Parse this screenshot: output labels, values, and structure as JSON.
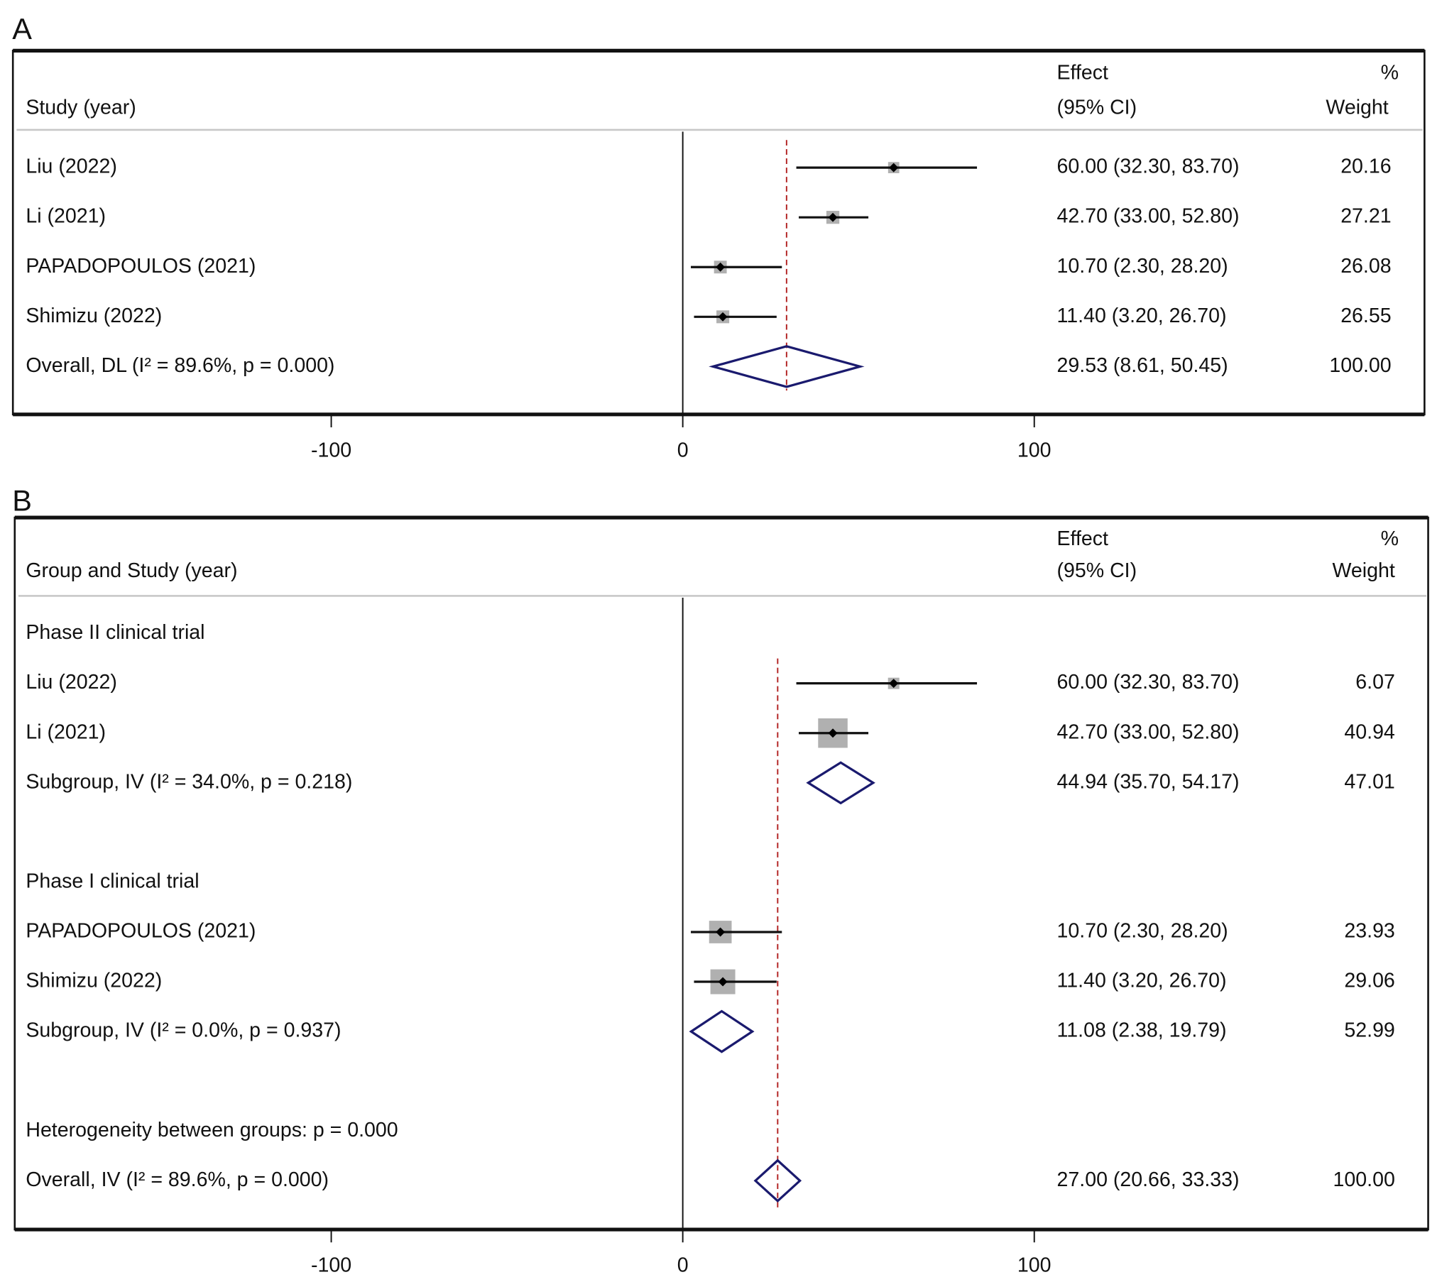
{
  "colors": {
    "diamond": "#1a1a6e",
    "reference_line": "#b22222",
    "weight_box": "#b0b0b0",
    "point": "#000000"
  },
  "chart_data": [
    {
      "type": "forest",
      "panel_label": "A",
      "headers": {
        "study": "Study (year)",
        "effect_1": "Effect",
        "effect_2": "(95% CI)",
        "weight_1": "%",
        "weight_2": "Weight"
      },
      "xticks": [
        -100,
        0,
        100
      ],
      "xtick_labels": [
        "-100",
        "0",
        "100"
      ],
      "xlim": [
        -190,
        210
      ],
      "reference_value": 29.53,
      "rows": [
        {
          "kind": "study",
          "label": "Liu (2022)",
          "effect": 60.0,
          "lo": 32.3,
          "hi": 83.7,
          "ci_text": "60.00 (32.30, 83.70)",
          "weight": "20.16"
        },
        {
          "kind": "study",
          "label": "Li (2021)",
          "effect": 42.7,
          "lo": 33.0,
          "hi": 52.8,
          "ci_text": "42.70 (33.00, 52.80)",
          "weight": "27.21"
        },
        {
          "kind": "study",
          "label": "PAPADOPOULOS (2021)",
          "effect": 10.7,
          "lo": 2.3,
          "hi": 28.2,
          "ci_text": "10.70 (2.30, 28.20)",
          "weight": "26.08"
        },
        {
          "kind": "study",
          "label": "Shimizu (2022)",
          "effect": 11.4,
          "lo": 3.2,
          "hi": 26.7,
          "ci_text": "11.40 (3.20, 26.70)",
          "weight": "26.55"
        },
        {
          "kind": "overall",
          "label": "Overall, DL (I² = 89.6%, p = 0.000)",
          "effect": 29.53,
          "lo": 8.61,
          "hi": 50.45,
          "ci_text": "29.53 (8.61, 50.45)",
          "weight": "100.00"
        }
      ]
    },
    {
      "type": "forest",
      "panel_label": "B",
      "headers": {
        "study": "Group and Study (year)",
        "effect_1": "Effect",
        "effect_2": "(95% CI)",
        "weight_1": "%",
        "weight_2": "Weight"
      },
      "xticks": [
        -100,
        0,
        100
      ],
      "xtick_labels": [
        "-100",
        "0",
        "100"
      ],
      "xlim": [
        -190,
        210
      ],
      "reference_value": 27.0,
      "rows": [
        {
          "kind": "group",
          "label": "Phase II clinical trial"
        },
        {
          "kind": "study",
          "label": "Liu (2022)",
          "effect": 60.0,
          "lo": 32.3,
          "hi": 83.7,
          "ci_text": "60.00 (32.30, 83.70)",
          "weight": "6.07"
        },
        {
          "kind": "study",
          "label": "Li (2021)",
          "effect": 42.7,
          "lo": 33.0,
          "hi": 52.8,
          "ci_text": "42.70 (33.00, 52.80)",
          "weight": "40.94"
        },
        {
          "kind": "subgroup",
          "label": "Subgroup, IV (I² = 34.0%, p = 0.218)",
          "effect": 44.94,
          "lo": 35.7,
          "hi": 54.17,
          "ci_text": "44.94 (35.70, 54.17)",
          "weight": "47.01"
        },
        {
          "kind": "blank"
        },
        {
          "kind": "group",
          "label": "Phase I clinical trial"
        },
        {
          "kind": "study",
          "label": "PAPADOPOULOS (2021)",
          "effect": 10.7,
          "lo": 2.3,
          "hi": 28.2,
          "ci_text": "10.70 (2.30, 28.20)",
          "weight": "23.93"
        },
        {
          "kind": "study",
          "label": "Shimizu (2022)",
          "effect": 11.4,
          "lo": 3.2,
          "hi": 26.7,
          "ci_text": "11.40 (3.20, 26.70)",
          "weight": "29.06"
        },
        {
          "kind": "subgroup",
          "label": "Subgroup, IV (I² = 0.0%, p = 0.937)",
          "effect": 11.08,
          "lo": 2.38,
          "hi": 19.79,
          "ci_text": "11.08 (2.38, 19.79)",
          "weight": "52.99"
        },
        {
          "kind": "blank"
        },
        {
          "kind": "group",
          "label": "Heterogeneity between groups: p = 0.000"
        },
        {
          "kind": "overall",
          "label": "Overall, IV (I² = 89.6%, p = 0.000)",
          "effect": 27.0,
          "lo": 20.66,
          "hi": 33.33,
          "ci_text": "27.00 (20.66, 33.33)",
          "weight": "100.00"
        }
      ]
    }
  ]
}
